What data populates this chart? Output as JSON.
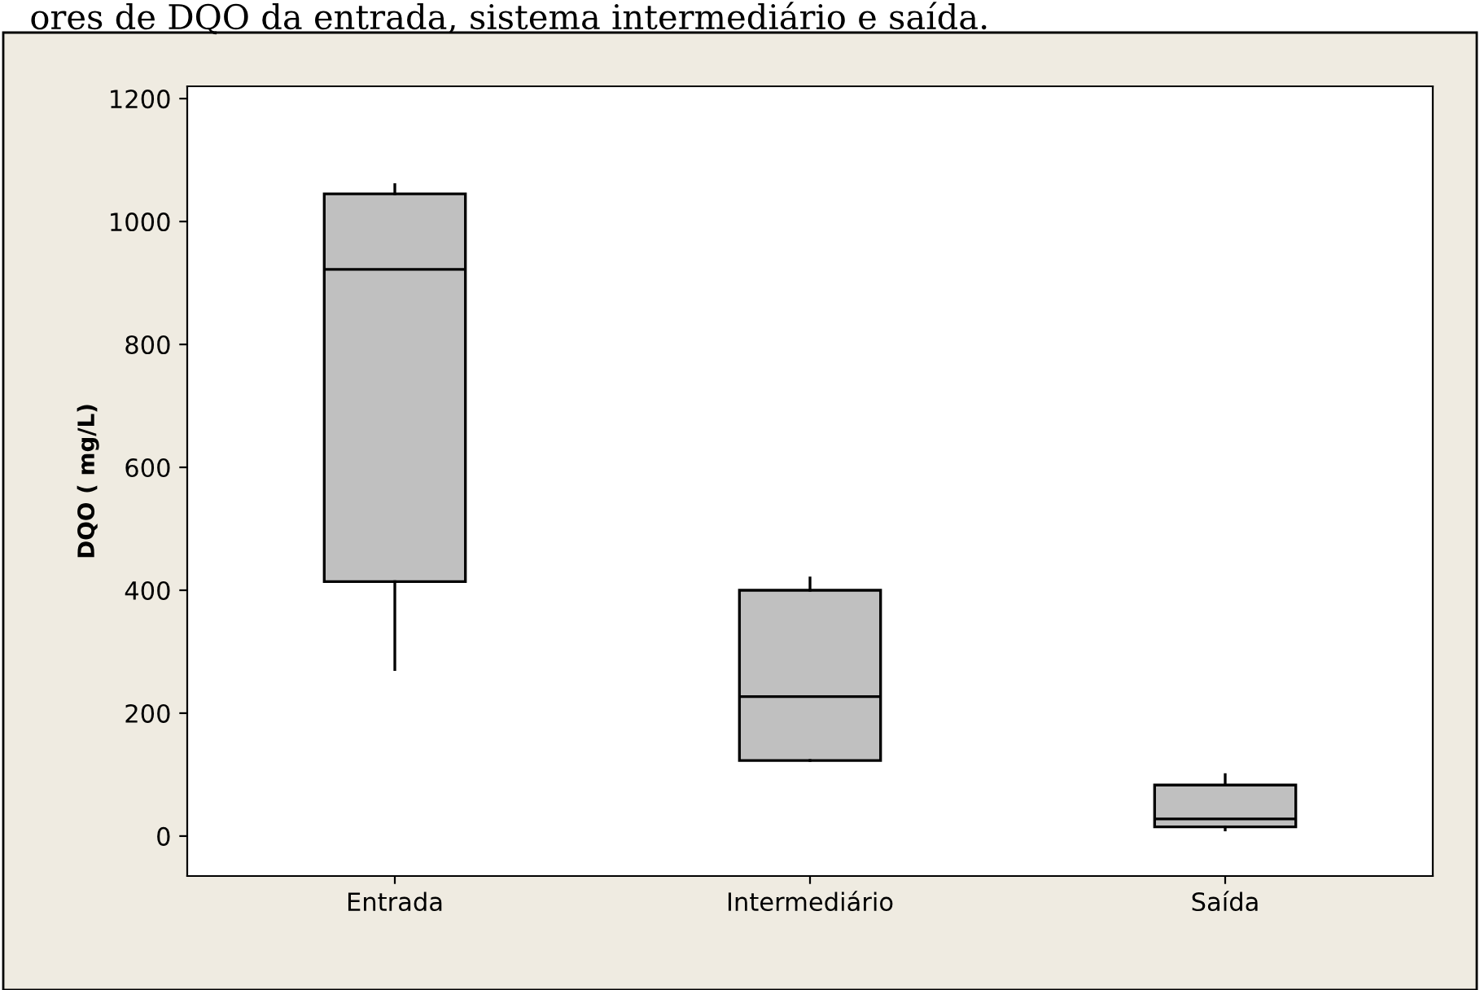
{
  "chart_data": {
    "type": "box",
    "title": "ores de DQO da entrada, sistema intermediário e saída.",
    "ylabel": "DQO ( mg/L)",
    "categories": [
      "Entrada",
      "Intermediário",
      "Saída"
    ],
    "color": "#c0c0c0",
    "boxes": [
      {
        "low": 271,
        "q1": 414,
        "median": 922,
        "q3": 1045,
        "high": 1060
      },
      {
        "low": 123,
        "q1": 123,
        "median": 227,
        "q3": 400,
        "high": 420
      },
      {
        "low": 10,
        "q1": 15,
        "median": 28,
        "q3": 83,
        "high": 100
      }
    ],
    "ylim": [
      -65,
      1220
    ],
    "yticks": [
      0,
      200,
      400,
      600,
      800,
      1000,
      1200
    ],
    "grid": false
  }
}
